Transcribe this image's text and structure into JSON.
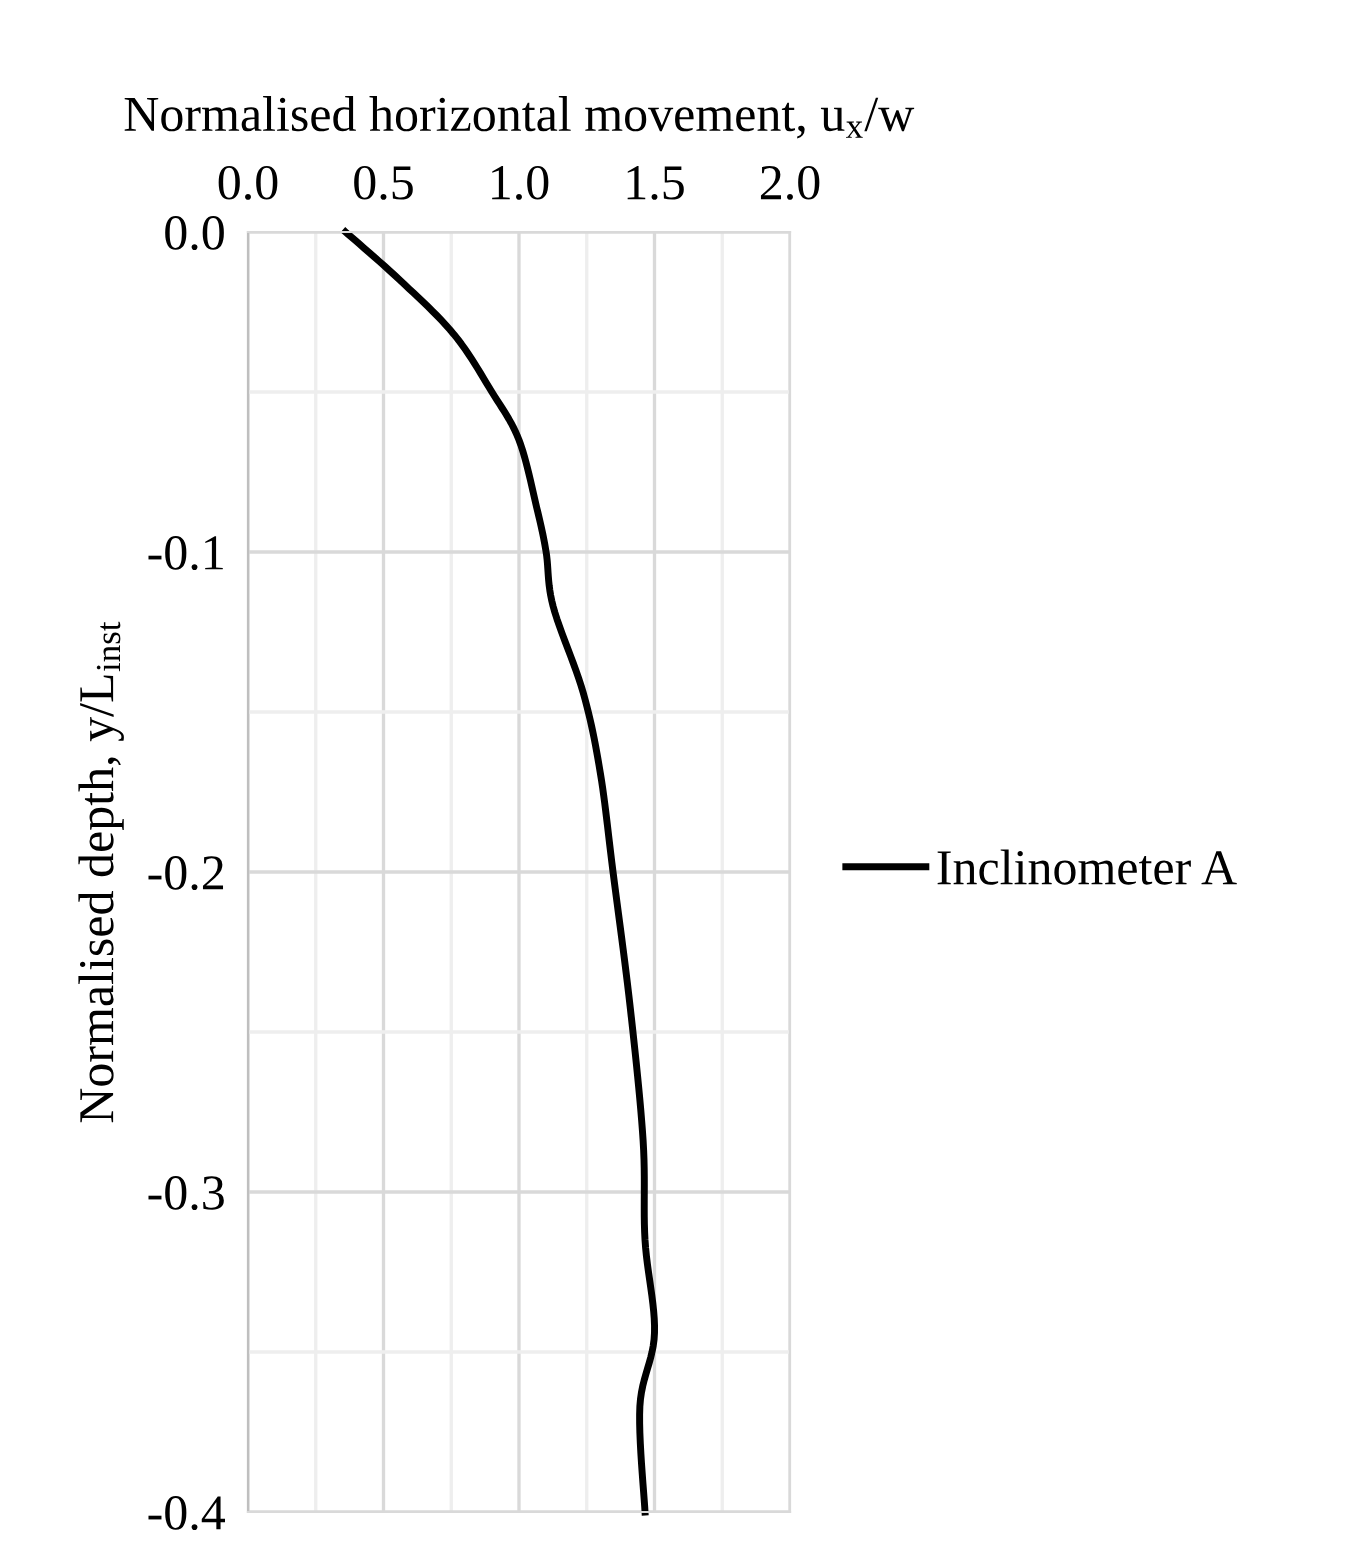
{
  "chart_data": {
    "type": "line",
    "xlabel": "Normalised horizontal movement, u$_{x}$/w",
    "ylabel": "Normalised depth, y/L$_{inst}$",
    "xlim": [
      0,
      2
    ],
    "ylim": [
      -0.4,
      0
    ],
    "xticks": [
      {
        "value": 0.0,
        "label": "0.0"
      },
      {
        "value": 0.25,
        "label": null
      },
      {
        "value": 0.5,
        "label": "0.5"
      },
      {
        "value": 0.75,
        "label": null
      },
      {
        "value": 1.0,
        "label": "1.0"
      },
      {
        "value": 1.25,
        "label": null
      },
      {
        "value": 1.5,
        "label": "1.5"
      },
      {
        "value": 1.75,
        "label": null
      },
      {
        "value": 2.0,
        "label": "2.0"
      }
    ],
    "yticks": [
      {
        "value": 0.0,
        "label": "0.0"
      },
      {
        "value": -0.05,
        "label": null
      },
      -0.1,
      {
        "value": -0.15,
        "label": null
      },
      -0.2,
      {
        "value": -0.25,
        "label": null
      },
      -0.3,
      {
        "value": -0.35,
        "label": null
      },
      -0.4
    ],
    "grid": true,
    "legend": "right",
    "marker": "none",
    "line_style": "solid",
    "series": [
      {
        "name": "Inclinometer A",
        "color": "#000000",
        "x": [
          0.36,
          0.56,
          0.76,
          0.9,
          1.0,
          1.065,
          1.1,
          1.126,
          1.237,
          1.3,
          1.347,
          1.41,
          1.458,
          1.465,
          1.5,
          1.446,
          1.465
        ],
        "values": [
          0,
          -0.015,
          -0.032,
          -0.05,
          -0.065,
          -0.086,
          -0.1,
          -0.117,
          -0.144,
          -0.169,
          -0.2,
          -0.242,
          -0.284,
          -0.315,
          -0.344,
          -0.367,
          -0.4
        ]
      }
    ]
  }
}
